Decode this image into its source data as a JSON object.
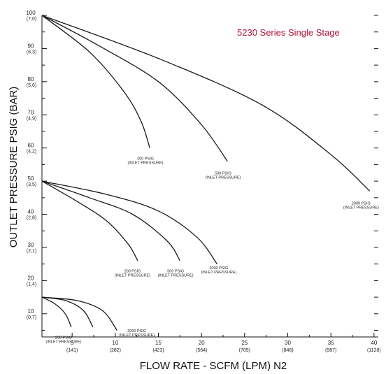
{
  "chart_data": {
    "type": "line",
    "title": "5230 Series Single Stage",
    "xlabel": "FLOW RATE - SCFM (LPM) N2",
    "ylabel": "OUTLET PRESSURE PSIG (BAR)",
    "xlim": [
      1.5,
      40.5
    ],
    "ylim": [
      3,
      100
    ],
    "grid": false,
    "x_ticks": [
      {
        "value": 5,
        "label": "5",
        "sub": "(141)"
      },
      {
        "value": 10,
        "label": "10",
        "sub": "(282)"
      },
      {
        "value": 15,
        "label": "15",
        "sub": "(423)"
      },
      {
        "value": 20,
        "label": "20",
        "sub": "(564)"
      },
      {
        "value": 25,
        "label": "25",
        "sub": "(705)"
      },
      {
        "value": 30,
        "label": "30",
        "sub": "(846)"
      },
      {
        "value": 35,
        "label": "35",
        "sub": "(987)"
      },
      {
        "value": 40,
        "label": "40",
        "sub": "(1128)"
      }
    ],
    "y_ticks": [
      {
        "value": 10,
        "label": "10",
        "sub": "(0,7)"
      },
      {
        "value": 20,
        "label": "20",
        "sub": "(1,4)"
      },
      {
        "value": 30,
        "label": "30",
        "sub": "(2,1)"
      },
      {
        "value": 40,
        "label": "40",
        "sub": "(2,8)"
      },
      {
        "value": 50,
        "label": "50",
        "sub": "(3,5)"
      },
      {
        "value": 60,
        "label": "60",
        "sub": "(4,2)"
      },
      {
        "value": 70,
        "label": "70",
        "sub": "(4,9)"
      },
      {
        "value": 80,
        "label": "80",
        "sub": "(5,6)"
      },
      {
        "value": 90,
        "label": "90",
        "sub": "(6,3)"
      },
      {
        "value": 100,
        "label": "100",
        "sub": "(7,0)"
      }
    ],
    "series": [
      {
        "group": 100,
        "inlet": "200 PSIG",
        "x": [
          1.5,
          7,
          11,
          13,
          14
        ],
        "y": [
          100,
          89,
          77,
          68,
          60
        ]
      },
      {
        "group": 100,
        "inlet": "500 PSIG",
        "x": [
          1.5,
          8,
          15,
          20,
          23
        ],
        "y": [
          100,
          91,
          80,
          67,
          56
        ]
      },
      {
        "group": 100,
        "inlet": "2000 PSIG",
        "x": [
          1.5,
          15,
          27,
          35,
          39.5
        ],
        "y": [
          100,
          87,
          73,
          58,
          47
        ]
      },
      {
        "group": 50,
        "inlet": "200 PSIG",
        "x": [
          1.5,
          5.5,
          9,
          11.5,
          12.6
        ],
        "y": [
          50,
          44,
          38,
          31,
          26
        ]
      },
      {
        "group": 50,
        "inlet": "500 PSIG",
        "x": [
          1.5,
          7,
          12,
          16,
          17.5
        ],
        "y": [
          50,
          45,
          40,
          32,
          26
        ]
      },
      {
        "group": 50,
        "inlet": "2000 PSIG",
        "x": [
          1.5,
          9,
          15,
          19.5,
          21.8
        ],
        "y": [
          50,
          46,
          41,
          33,
          25
        ]
      },
      {
        "group": 15,
        "inlet": "200 PSIG",
        "x": [
          1.5,
          3,
          4.2,
          4.9
        ],
        "y": [
          15,
          13,
          10,
          6
        ]
      },
      {
        "group": 15,
        "inlet": "500 PSIG",
        "x": [
          1.5,
          4.2,
          6.3,
          7.4
        ],
        "y": [
          15,
          14,
          11,
          6
        ]
      },
      {
        "group": 15,
        "inlet": "2000 PSIG",
        "x": [
          1.5,
          5.5,
          8.5,
          10.2
        ],
        "y": [
          15,
          14,
          11,
          5
        ]
      }
    ],
    "annotations": [
      {
        "id": "a1",
        "line1": "200 PSIG",
        "line2": "(INLET PRESSURE)",
        "x": 13.5,
        "y": 56.5
      },
      {
        "id": "a2",
        "line1": "500 PSIG",
        "line2": "(INLET PRESSURE)",
        "x": 22.5,
        "y": 52
      },
      {
        "id": "a3",
        "line1": "2000 PSIG",
        "line2": "(INLET PRESSURE)",
        "x": 38.5,
        "y": 43
      },
      {
        "id": "a4",
        "line1": "200 PSIG",
        "line2": "(INLET PRESSURE)",
        "x": 12,
        "y": 22.5
      },
      {
        "id": "a5",
        "line1": "500 PSIG",
        "line2": "(INLET PRESSURE)",
        "x": 17,
        "y": 22.5
      },
      {
        "id": "a6",
        "line1": "2000 PSIG",
        "line2": "(INLET PRESSURE)",
        "x": 22,
        "y": 23.5
      },
      {
        "id": "a7",
        "line1": "200 PSIG",
        "line2": "(INLET PRESSURE)",
        "x": 4,
        "y": 2.5
      },
      {
        "id": "a8",
        "line1": "2000 PSIG",
        "line2": "(INLET PRESSURE)",
        "x": 12.5,
        "y": 4.5
      }
    ]
  }
}
